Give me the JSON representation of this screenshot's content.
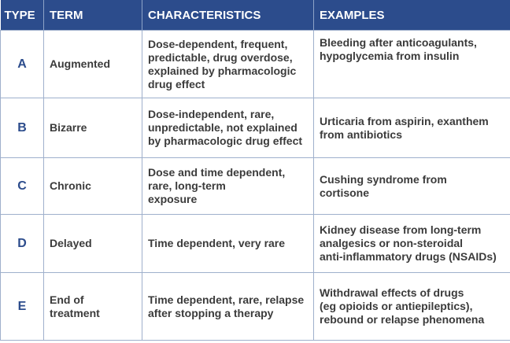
{
  "table": {
    "headers": [
      "TYPE",
      "TERM",
      "CHARACTERISTICS",
      "EXAMPLES"
    ],
    "rows": [
      [
        "A",
        "Augmented",
        "Dose-dependent, frequent,\npredictable, drug overdose,\nexplained by pharmacologic\ndrug effect",
        "Bleeding after anticoagulants,\nhypoglycemia from insulin"
      ],
      [
        "B",
        "Bizarre",
        "Dose-independent, rare,\nunpredictable, not explained\nby pharmacologic drug effect",
        "Urticaria from aspirin, exanthem\nfrom antibiotics"
      ],
      [
        "C",
        "Chronic",
        "Dose and time dependent,\nrare, long-term\nexposure",
        "Cushing syndrome from\ncortisone"
      ],
      [
        "D",
        "Delayed",
        "Time dependent, very rare",
        "Kidney disease from long-term\nanalgesics or non-steroidal\nanti-inflammatory drugs (NSAIDs)"
      ],
      [
        "E",
        "End of treatment",
        "Time dependent, rare, relapse\nafter stopping a therapy",
        "Withdrawal effects of drugs\n(eg opioids or antiepileptics),\nrebound or relapse phenomena"
      ]
    ]
  }
}
